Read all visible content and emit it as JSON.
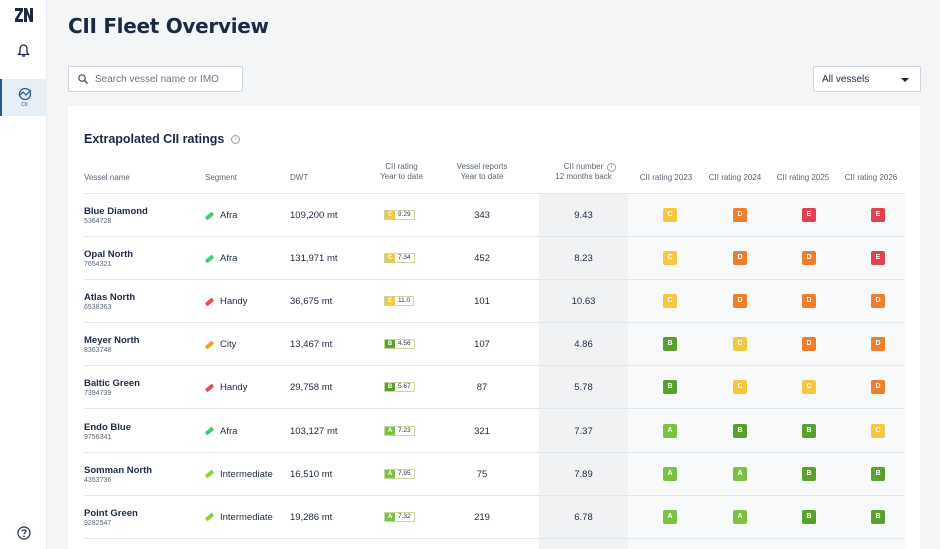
{
  "app": {
    "logo_text": "2N"
  },
  "sidebar": {
    "items": [
      {
        "name": "notifications",
        "icon": "bell-icon"
      },
      {
        "name": "cii",
        "icon": "cii-icon",
        "label": "CII",
        "active": true
      },
      {
        "name": "help",
        "icon": "help-icon"
      }
    ]
  },
  "header": {
    "title": "CII Fleet Overview"
  },
  "search": {
    "placeholder": "Search vessel name or IMO",
    "value": ""
  },
  "filter": {
    "selected": "All vessels"
  },
  "section": {
    "title": "Extrapolated CII ratings"
  },
  "table": {
    "columns": {
      "vessel": "Vessel name",
      "segment": "Segment",
      "dwt": "DWT",
      "ytd_1": "CII rating",
      "ytd_2": "Year to date",
      "reports_1": "Vessel reports",
      "reports_2": "Year to date",
      "cii_1": "CII number",
      "cii_2": "12 months back",
      "r2023": "CII rating 2023",
      "r2024": "CII rating 2024",
      "r2025": "CII rating 2025",
      "r2026": "CII rating 2026"
    },
    "rows": [
      {
        "name": "Blue Diamond",
        "imo": "5364728",
        "segment": "Afra",
        "dwt": "109,200 mt",
        "ytd_grade": "C",
        "ytd_value": "9.29",
        "reports": "343",
        "cii": "9.43",
        "r2023": "C",
        "r2024": "D",
        "r2025": "E",
        "r2026": "E"
      },
      {
        "name": "Opal North",
        "imo": "7654321",
        "segment": "Afra",
        "dwt": "131,971 mt",
        "ytd_grade": "C",
        "ytd_value": "7.34",
        "reports": "452",
        "cii": "8.23",
        "r2023": "C",
        "r2024": "D",
        "r2025": "D",
        "r2026": "E"
      },
      {
        "name": "Atlas North",
        "imo": "6538363",
        "segment": "Handy",
        "dwt": "36,675 mt",
        "ytd_grade": "C",
        "ytd_value": "11.0",
        "reports": "101",
        "cii": "10.63",
        "r2023": "C",
        "r2024": "D",
        "r2025": "D",
        "r2026": "D"
      },
      {
        "name": "Meyer North",
        "imo": "8363748",
        "segment": "City",
        "dwt": "13,467 mt",
        "ytd_grade": "B",
        "ytd_value": "4.56",
        "reports": "107",
        "cii": "4.86",
        "r2023": "B",
        "r2024": "C",
        "r2025": "D",
        "r2026": "D"
      },
      {
        "name": "Baltic Green",
        "imo": "7394739",
        "segment": "Handy",
        "dwt": "29,758 mt",
        "ytd_grade": "B",
        "ytd_value": "5.67",
        "reports": "87",
        "cii": "5.78",
        "r2023": "B",
        "r2024": "C",
        "r2025": "C",
        "r2026": "D"
      },
      {
        "name": "Endo Blue",
        "imo": "9756341",
        "segment": "Afra",
        "dwt": "103,127 mt",
        "ytd_grade": "A",
        "ytd_value": "7.23",
        "reports": "321",
        "cii": "7.37",
        "r2023": "A",
        "r2024": "B",
        "r2025": "B",
        "r2026": "C"
      },
      {
        "name": "Somman North",
        "imo": "4353736",
        "segment": "Intermediate",
        "dwt": "16,510 mt",
        "ytd_grade": "A",
        "ytd_value": "7.95",
        "reports": "75",
        "cii": "7.89",
        "r2023": "A",
        "r2024": "A",
        "r2025": "B",
        "r2026": "B"
      },
      {
        "name": "Point Green",
        "imo": "9282547",
        "segment": "Intermediate",
        "dwt": "19,286 mt",
        "ytd_grade": "A",
        "ytd_value": "7.32",
        "reports": "219",
        "cii": "6.78",
        "r2023": "A",
        "r2024": "A",
        "r2025": "B",
        "r2026": "B"
      }
    ]
  },
  "colors": {
    "grades": {
      "A": "#7cc242",
      "B": "#5aa02c",
      "C": "#f5c842",
      "D": "#ee7d2c",
      "E": "#e0424f"
    },
    "segments": {
      "Afra": "#3ecf7a",
      "Handy": "#ee4b57",
      "City": "#f59a23",
      "Intermediate": "#8fd13a"
    }
  }
}
